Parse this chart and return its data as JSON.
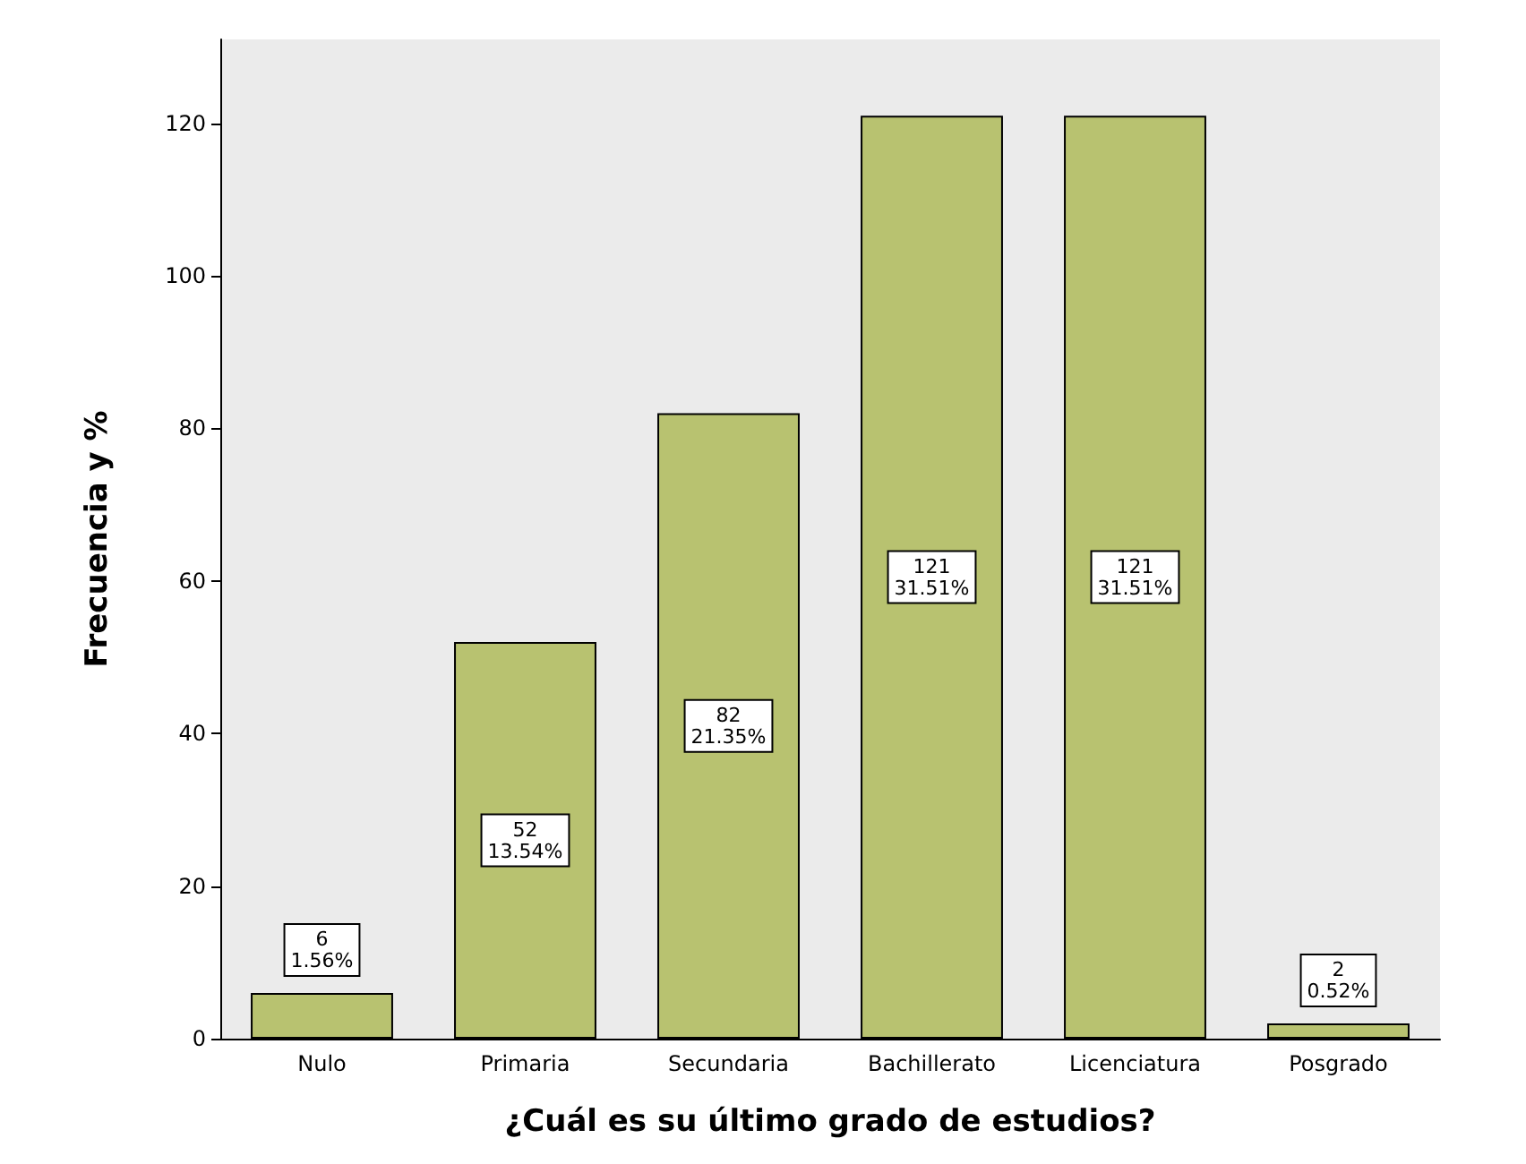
{
  "chart_data": {
    "type": "bar",
    "xlabel": "¿Cuál es su último grado de estudios?",
    "ylabel": "Frecuencia y %",
    "categories": [
      "Nulo",
      "Primaria",
      "Secundaria",
      "Bachillerato",
      "Licenciatura",
      "Posgrado"
    ],
    "values": [
      6,
      52,
      82,
      121,
      121,
      2
    ],
    "value_labels": [
      "6\n1.56%",
      "52\n13.54%",
      "82\n21.35%",
      "121\n31.51%",
      "121\n31.51%",
      "2\n0.52%"
    ],
    "color": "#b8c270",
    "ylim": [
      0,
      131
    ],
    "yticks": [
      0,
      20,
      40,
      60,
      80,
      100,
      120
    ],
    "grid": false
  }
}
